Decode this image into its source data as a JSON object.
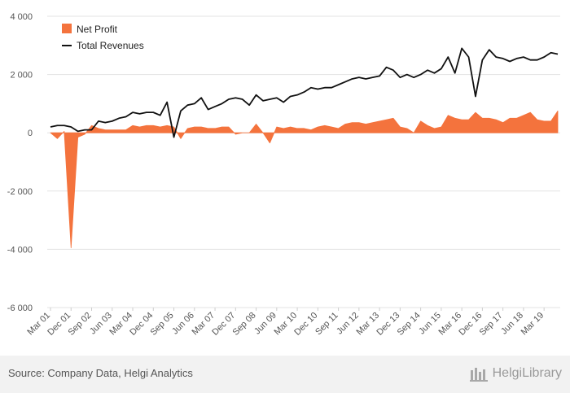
{
  "chart_data": {
    "type": "area",
    "ylim": [
      -6000,
      4000
    ],
    "yticks": [
      4000,
      2000,
      0,
      -2000,
      -4000,
      -6000
    ],
    "ytick_labels": [
      "4 000",
      "2 000",
      "0",
      "-2 000",
      "-4 000",
      "-6 000"
    ],
    "xtick_labels": [
      "Mar 01",
      "Dec 01",
      "Sep 02",
      "Jun 03",
      "Mar 04",
      "Dec 04",
      "Sep 05",
      "Jun 06",
      "Mar 07",
      "Dec 07",
      "Sep 08",
      "Jun 09",
      "Mar 10",
      "Dec 10",
      "Sep 11",
      "Jun 12",
      "Mar 13",
      "Dec 13",
      "Sep 14",
      "Jun 15",
      "Mar 16",
      "Dec 16",
      "Sep 17",
      "Jun 18",
      "Mar 19"
    ],
    "legend_position": "top-left",
    "grid": true,
    "series": [
      {
        "name": "Net Profit",
        "type": "area",
        "color": "#f4733d",
        "values": [
          0,
          -200,
          50,
          -3950,
          -150,
          -50,
          250,
          150,
          100,
          100,
          100,
          100,
          250,
          200,
          250,
          250,
          200,
          250,
          200,
          -200,
          150,
          200,
          200,
          150,
          150,
          200,
          200,
          -50,
          0,
          0,
          300,
          0,
          -350,
          200,
          150,
          200,
          150,
          150,
          100,
          200,
          250,
          200,
          150,
          300,
          350,
          350,
          300,
          350,
          400,
          450,
          500,
          200,
          150,
          0,
          400,
          250,
          150,
          200,
          600,
          500,
          450,
          450,
          700,
          500,
          500,
          450,
          350,
          500,
          500,
          600,
          700,
          450,
          400,
          400,
          750
        ]
      },
      {
        "name": "Total Revenues",
        "type": "line",
        "color": "#111111",
        "values": [
          200,
          250,
          250,
          200,
          50,
          100,
          100,
          400,
          350,
          400,
          500,
          550,
          700,
          650,
          700,
          700,
          600,
          1050,
          -150,
          750,
          950,
          1000,
          1200,
          800,
          900,
          1000,
          1150,
          1200,
          1150,
          950,
          1300,
          1100,
          1150,
          1200,
          1050,
          1250,
          1300,
          1400,
          1550,
          1500,
          1550,
          1550,
          1650,
          1750,
          1850,
          1900,
          1850,
          1900,
          1950,
          2250,
          2150,
          1900,
          2000,
          1900,
          2000,
          2150,
          2050,
          2200,
          2600,
          2050,
          2900,
          2600,
          1250,
          2500,
          2850,
          2600,
          2550,
          2450,
          2550,
          2600,
          2500,
          2500,
          2600,
          2750,
          2700
        ]
      }
    ]
  },
  "footer": {
    "source": "Source: Company Data, Helgi Analytics",
    "logo_text": "HelgiLibrary"
  }
}
